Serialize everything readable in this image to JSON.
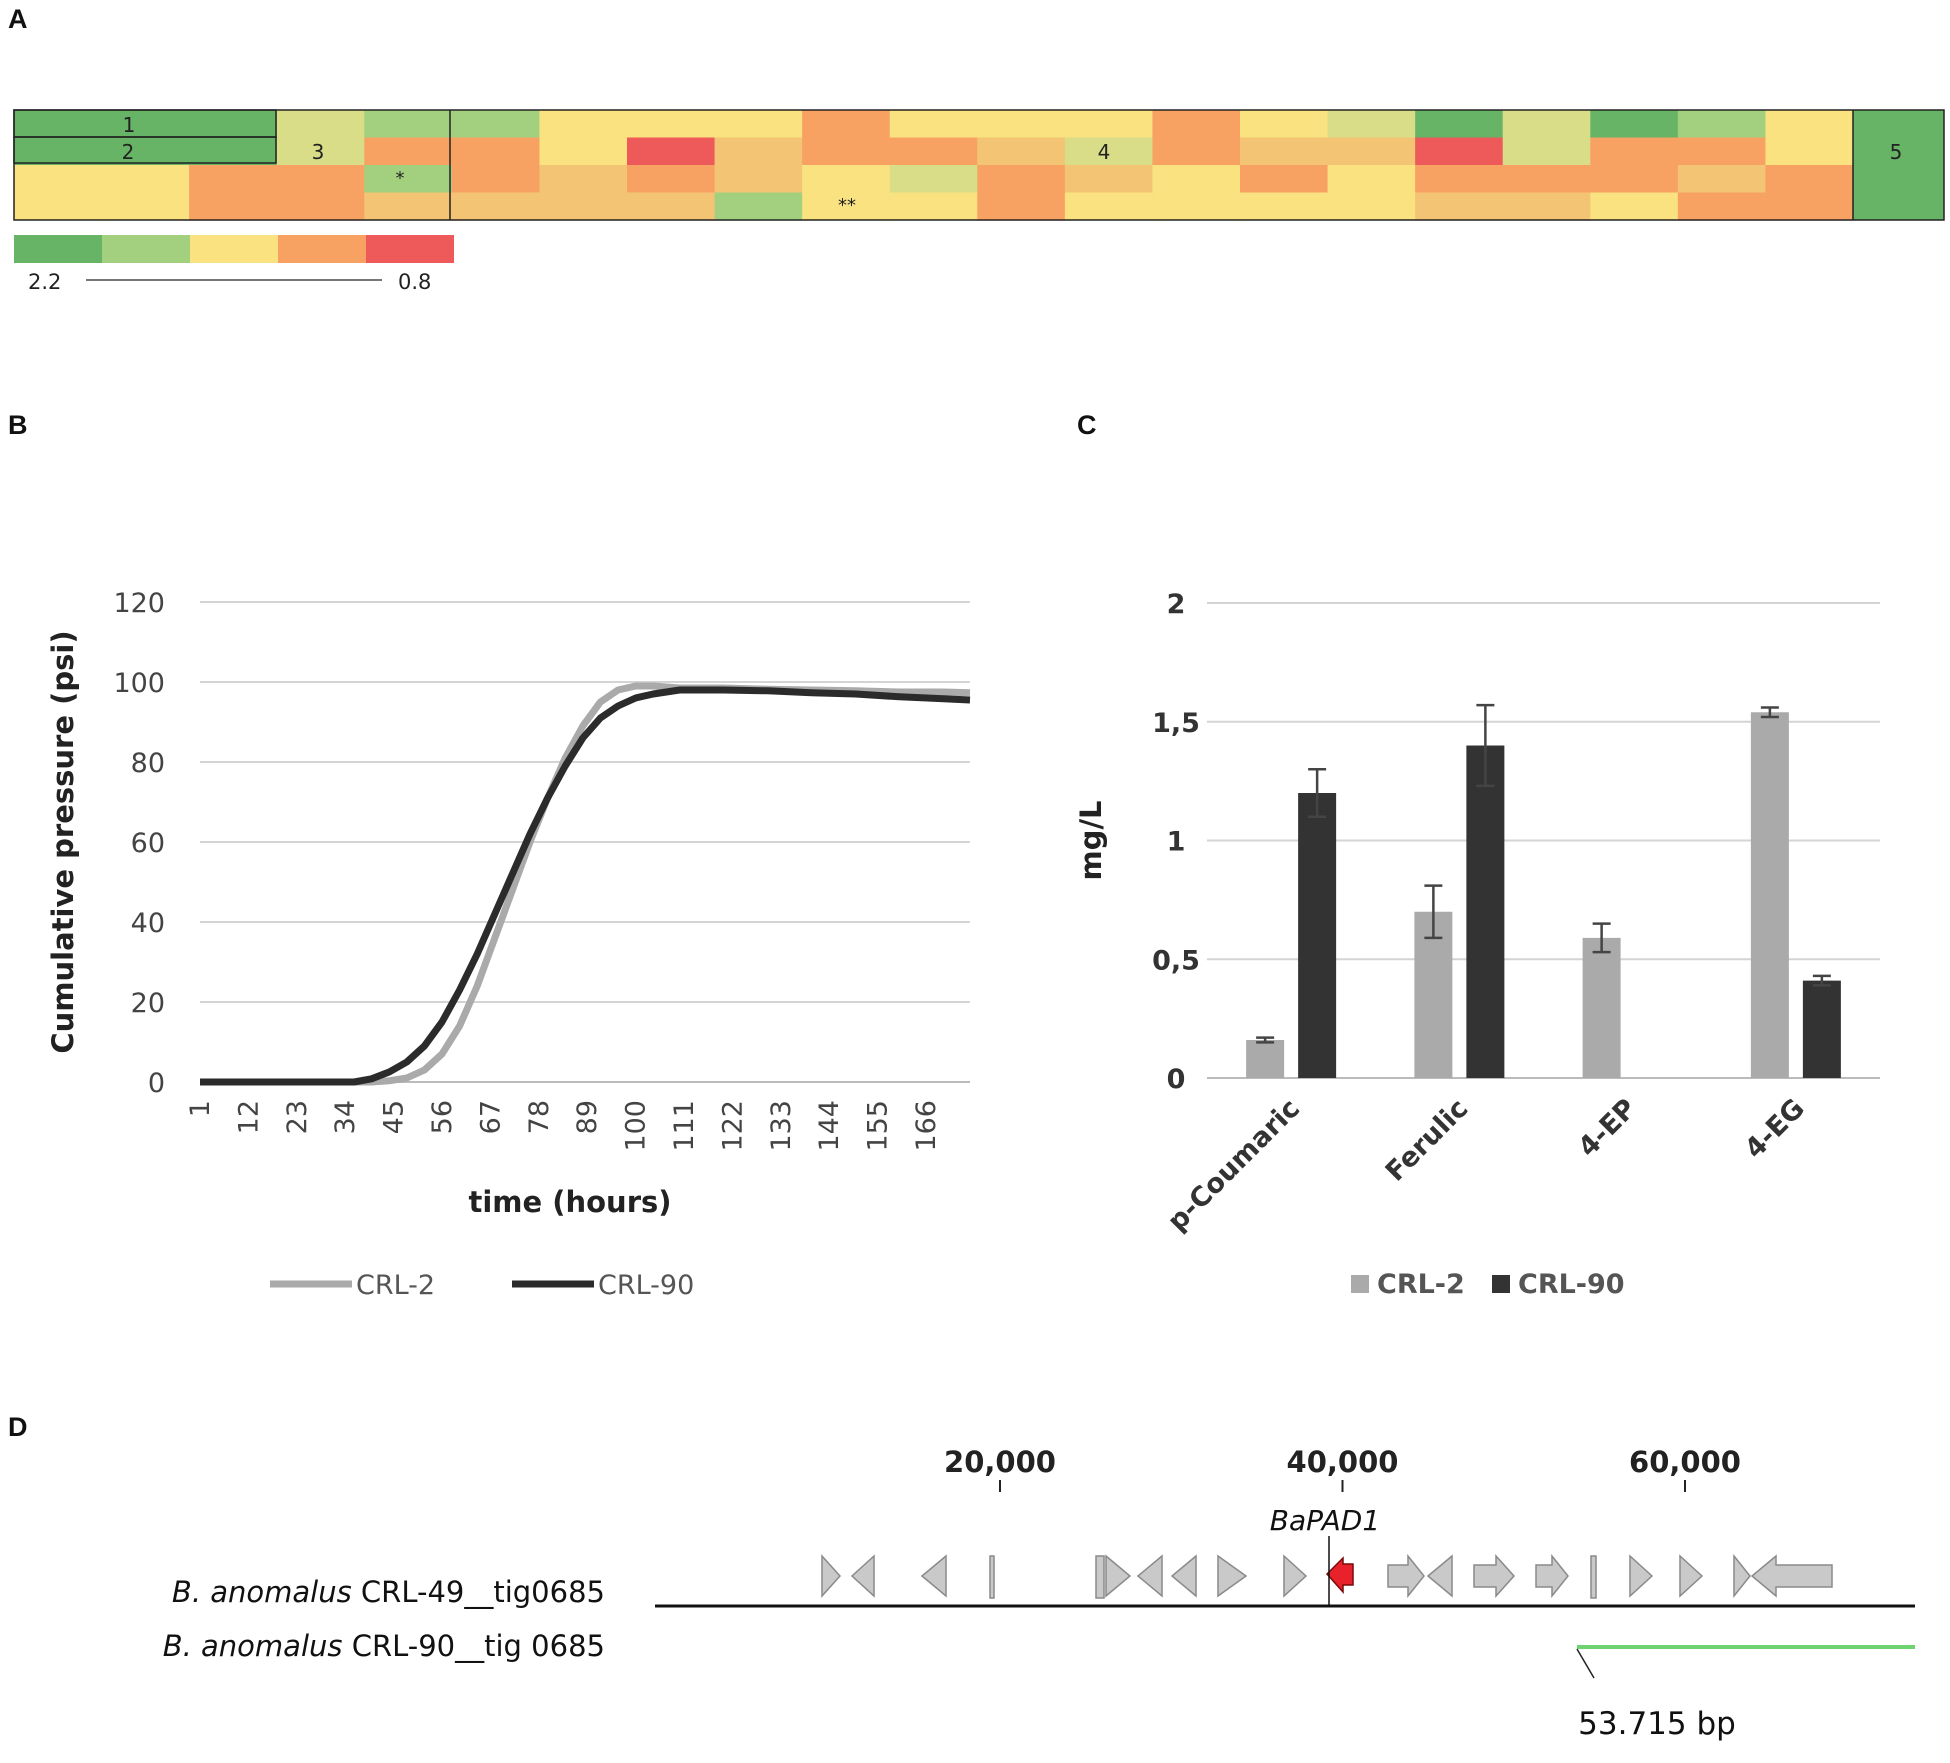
{
  "figure": {
    "panel_labels": {
      "a": "A",
      "b": "B",
      "c": "C",
      "d": "D"
    }
  },
  "panel_a": {
    "heatmap": {
      "rows": 4,
      "cols": 21,
      "palette": [
        "#67b467",
        "#a3d07e",
        "#f9e27f",
        "#f7a263",
        "#ee5959",
        "#d9dd87",
        "#f3c473"
      ],
      "cells": [
        [
          1,
          1,
          1,
          1,
          1,
          1,
          1,
          1,
          0,
          0,
          0,
          0,
          0,
          0,
          0,
          0,
          3,
          3,
          5,
          5,
          4
        ],
        [
          0,
          0,
          0,
          0,
          0,
          0,
          0,
          0,
          0,
          0,
          0,
          0,
          0,
          0,
          0,
          0,
          0,
          0,
          0,
          0,
          0
        ],
        [
          0,
          0,
          0,
          0,
          0,
          0,
          0,
          0,
          0,
          0,
          0,
          0,
          0,
          0,
          0,
          0,
          0,
          0,
          0,
          0,
          0
        ],
        [
          0,
          0,
          0,
          0,
          0,
          0,
          0,
          0,
          0,
          0,
          0,
          0,
          0,
          0,
          0,
          0,
          0,
          0,
          0,
          0,
          0
        ]
      ],
      "cell_values": [
        [
          0,
          0,
          0,
          5,
          1,
          1,
          2,
          2,
          2,
          3,
          2,
          2,
          2,
          3,
          2,
          5,
          0,
          5,
          0,
          1,
          2
        ],
        [
          0,
          0,
          0,
          5,
          3,
          3,
          2,
          4,
          6,
          3,
          3,
          6,
          5,
          3,
          6,
          6,
          4,
          5,
          3,
          3,
          2
        ],
        [
          2,
          2,
          3,
          3,
          1,
          3,
          6,
          3,
          6,
          2,
          5,
          3,
          6,
          2,
          3,
          2,
          3,
          3,
          3,
          6,
          3
        ],
        [
          2,
          2,
          3,
          3,
          6,
          6,
          6,
          6,
          1,
          2,
          2,
          3,
          2,
          2,
          2,
          2,
          6,
          6,
          2,
          3,
          3
        ]
      ],
      "group_labels": [
        "1",
        "2",
        "3",
        "4",
        "5"
      ],
      "marks": [
        "*",
        "**"
      ],
      "scale_colors": [
        "#67b467",
        "#a3d07e",
        "#f9e27f",
        "#f7a263",
        "#ee5959"
      ],
      "scale_min_label": "2.2",
      "scale_max_label": "0.8"
    }
  },
  "chart_data": [
    {
      "type": "line",
      "panel": "B",
      "title": "",
      "xlabel": "time (hours)",
      "ylabel": "Cumulative pressure (psi)",
      "x_ticks": [
        "1",
        "12",
        "23",
        "34",
        "45",
        "56",
        "67",
        "78",
        "89",
        "100",
        "111",
        "122",
        "133",
        "144",
        "155",
        "166"
      ],
      "xlim": [
        1,
        176
      ],
      "ylim": [
        0,
        120
      ],
      "y_ticks": [
        0,
        20,
        40,
        60,
        80,
        100,
        120
      ],
      "grid": true,
      "legend": "bottom",
      "series": [
        {
          "name": "CRL-2",
          "color": "#aaaaaa",
          "points": [
            [
              1,
              0
            ],
            [
              30,
              0
            ],
            [
              40,
              0
            ],
            [
              44,
              0.3
            ],
            [
              48,
              1
            ],
            [
              52,
              3
            ],
            [
              56,
              7
            ],
            [
              60,
              14
            ],
            [
              64,
              24
            ],
            [
              68,
              36
            ],
            [
              72,
              48
            ],
            [
              76,
              60
            ],
            [
              80,
              71
            ],
            [
              84,
              81
            ],
            [
              88,
              89
            ],
            [
              92,
              95
            ],
            [
              96,
              98
            ],
            [
              100,
              99
            ],
            [
              104,
              99
            ],
            [
              110,
              98.5
            ],
            [
              120,
              98.5
            ],
            [
              130,
              98.2
            ],
            [
              140,
              98
            ],
            [
              150,
              97.8
            ],
            [
              160,
              97.5
            ],
            [
              170,
              97.5
            ],
            [
              176,
              97.3
            ]
          ]
        },
        {
          "name": "CRL-90",
          "color": "#2b2b2b",
          "points": [
            [
              1,
              0
            ],
            [
              36,
              0
            ],
            [
              40,
              0.8
            ],
            [
              44,
              2.5
            ],
            [
              48,
              5
            ],
            [
              52,
              9
            ],
            [
              56,
              15
            ],
            [
              60,
              23
            ],
            [
              64,
              32
            ],
            [
              68,
              42
            ],
            [
              72,
              52
            ],
            [
              76,
              62
            ],
            [
              80,
              71
            ],
            [
              84,
              79
            ],
            [
              88,
              86
            ],
            [
              92,
              91
            ],
            [
              96,
              94
            ],
            [
              100,
              96
            ],
            [
              104,
              97
            ],
            [
              110,
              98
            ],
            [
              120,
              98
            ],
            [
              130,
              97.8
            ],
            [
              140,
              97.3
            ],
            [
              150,
              97
            ],
            [
              160,
              96.3
            ],
            [
              170,
              95.8
            ],
            [
              176,
              95.5
            ]
          ]
        }
      ]
    },
    {
      "type": "bar",
      "panel": "C",
      "title": "",
      "xlabel": "",
      "ylabel": "mg/L",
      "categories": [
        "p-Coumaric",
        "Ferulic",
        "4-EP",
        "4-EG"
      ],
      "ylim": [
        0,
        2
      ],
      "y_ticks": [
        0,
        0.5,
        1,
        1.5,
        2
      ],
      "y_tick_labels": [
        "0",
        "0,5",
        "1",
        "1,5",
        "2"
      ],
      "grid": true,
      "legend": "bottom",
      "series": [
        {
          "name": "CRL-2",
          "color": "#aaaaaa",
          "values": [
            0.16,
            0.7,
            0.59,
            1.54
          ],
          "errors": [
            0.01,
            0.11,
            0.06,
            0.02
          ]
        },
        {
          "name": "CRL-90",
          "color": "#333333",
          "values": [
            1.2,
            1.4,
            0,
            0.41
          ],
          "errors": [
            0.1,
            0.17,
            0,
            0.02
          ]
        }
      ]
    }
  ],
  "panel_d": {
    "axis_ticks": [
      "20,000",
      "40,000",
      "60,000"
    ],
    "axis_positions": [
      20000,
      40000,
      60000
    ],
    "gene_label": "BaPAD1",
    "gene_position": 39500,
    "track_label_1_italic": "B. anomalus",
    "track_label_1_rest": " CRL-49__tig0685",
    "track_label_2_italic": "B. anomalus",
    "track_label_2_rest": " CRL-90__tig 0685",
    "deletion_label": "53.715 bp",
    "deletion_color": "#6fd36f",
    "highlight_color": "#e8222a"
  }
}
